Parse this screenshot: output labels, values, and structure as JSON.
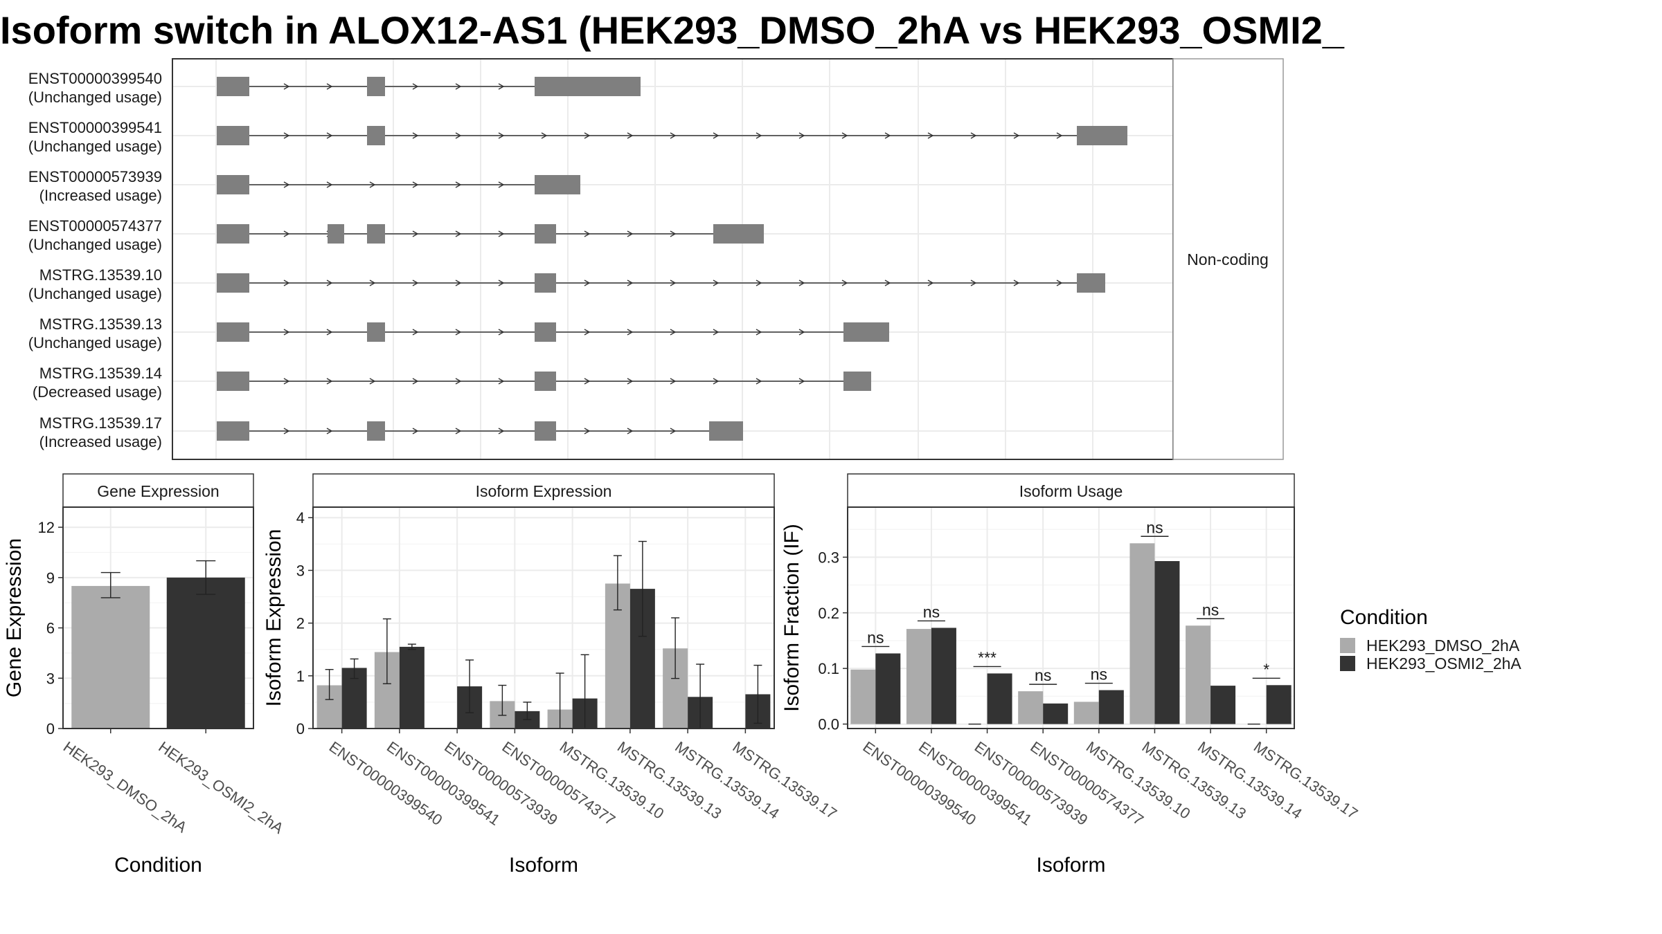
{
  "title": "Isoform switch in ALOX12-AS1 (HEK293_DMSO_2hA vs HEK293_OSMI2_",
  "colors": {
    "dmso": "#ABABAB",
    "osmi": "#333333",
    "exon": "#7F7F7F",
    "grid": "#EBEBEB",
    "strip": "#FFFFFF",
    "panel_border": "#333333"
  },
  "chart_data": [
    {
      "type": "gene-structure",
      "strip_label": "Non-coding",
      "transcripts": [
        {
          "id": "ENST00000399540",
          "usage": "(Unchanged usage)"
        },
        {
          "id": "ENST00000399541",
          "usage": "(Unchanged usage)"
        },
        {
          "id": "ENST00000573939",
          "usage": "(Increased usage)"
        },
        {
          "id": "ENST00000574377",
          "usage": "(Unchanged usage)"
        },
        {
          "id": "MSTRG.13539.10",
          "usage": "(Unchanged usage)"
        },
        {
          "id": "MSTRG.13539.13",
          "usage": "(Unchanged usage)"
        },
        {
          "id": "MSTRG.13539.14",
          "usage": "(Decreased usage)"
        },
        {
          "id": "MSTRG.13539.17",
          "usage": "(Increased usage)"
        }
      ]
    },
    {
      "type": "bar",
      "title": "Gene Expression",
      "xlabel": "Condition",
      "ylabel": "Gene Expression",
      "ylim": [
        0,
        13.2
      ],
      "yticks": [
        "0",
        "3",
        "6",
        "9",
        "12"
      ],
      "categories": [
        "HEK293_DMSO_2hA",
        "HEK293_OSMI2_2hA"
      ],
      "values": [
        8.5,
        9.0
      ],
      "err_low": [
        7.8,
        8.0
      ],
      "err_high": [
        9.3,
        10.0
      ]
    },
    {
      "type": "bar",
      "title": "Isoform Expression",
      "xlabel": "Isoform",
      "ylabel": "Isoform Expression",
      "ylim": [
        0,
        4.2
      ],
      "yticks": [
        "0",
        "1",
        "2",
        "3",
        "4"
      ],
      "categories": [
        "ENST00000399540",
        "ENST00000399541",
        "ENST00000573939",
        "ENST00000574377",
        "MSTRG.13539.10",
        "MSTRG.13539.13",
        "MSTRG.13539.14",
        "MSTRG.13539.17"
      ],
      "series": [
        {
          "name": "HEK293_DMSO_2hA",
          "values": [
            0.82,
            1.45,
            0.0,
            0.52,
            0.36,
            2.75,
            1.52,
            0.0
          ],
          "err_low": [
            0.55,
            0.85,
            0.0,
            0.25,
            0.0,
            2.25,
            0.95,
            0.0
          ],
          "err_high": [
            1.12,
            2.08,
            0.0,
            0.82,
            1.05,
            3.28,
            2.1,
            0.0
          ]
        },
        {
          "name": "HEK293_OSMI2_2hA",
          "values": [
            1.15,
            1.55,
            0.8,
            0.33,
            0.57,
            2.65,
            0.6,
            0.65
          ],
          "err_low": [
            0.95,
            1.5,
            0.3,
            0.17,
            0.0,
            1.75,
            0.0,
            0.1
          ],
          "err_high": [
            1.32,
            1.6,
            1.3,
            0.5,
            1.4,
            3.55,
            1.22,
            1.2
          ]
        }
      ]
    },
    {
      "type": "bar",
      "title": "Isoform Usage",
      "xlabel": "Isoform",
      "ylabel": "Isoform Fraction (IF)",
      "ylim": [
        -0.008,
        0.39
      ],
      "yticks": [
        "0.0",
        "0.1",
        "0.2",
        "0.3"
      ],
      "categories": [
        "ENST00000399540",
        "ENST00000399541",
        "ENST00000573939",
        "ENST00000574377",
        "MSTRG.13539.10",
        "MSTRG.13539.13",
        "MSTRG.13539.14",
        "MSTRG.13539.17"
      ],
      "series": [
        {
          "name": "HEK293_DMSO_2hA",
          "values": [
            0.098,
            0.171,
            0.0,
            0.059,
            0.04,
            0.325,
            0.177,
            0.0
          ]
        },
        {
          "name": "HEK293_OSMI2_2hA",
          "values": [
            0.127,
            0.173,
            0.091,
            0.037,
            0.061,
            0.293,
            0.069,
            0.07
          ]
        }
      ],
      "significance": [
        "ns",
        "ns",
        "***",
        "ns",
        "ns",
        "ns",
        "ns",
        "*"
      ]
    }
  ],
  "legend": {
    "title": "Condition",
    "items": [
      {
        "label": "HEK293_DMSO_2hA",
        "color": "#ABABAB"
      },
      {
        "label": "HEK293_OSMI2_2hA",
        "color": "#333333"
      }
    ]
  }
}
